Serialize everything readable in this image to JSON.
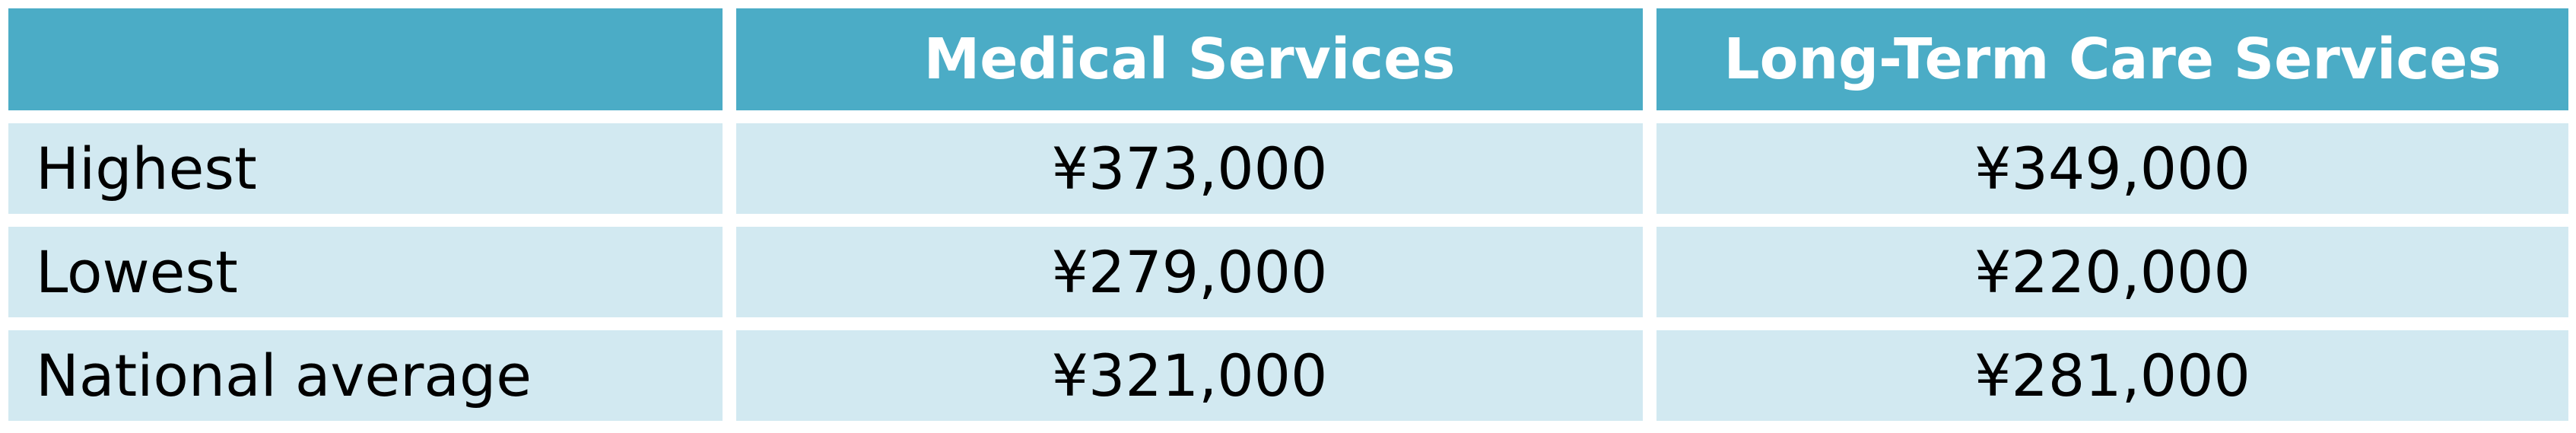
{
  "table": {
    "columns": [
      "Medical Services",
      "Long-Term Care Services"
    ],
    "rows": [
      [
        "Highest",
        "¥373,000",
        "¥349,000"
      ],
      [
        "Lowest",
        "¥279,000",
        "¥220,000"
      ],
      [
        "National average",
        "¥321,000",
        "¥281,000"
      ]
    ]
  }
}
